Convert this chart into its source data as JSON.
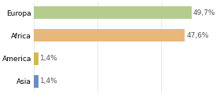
{
  "categories": [
    "Europa",
    "Africa",
    "America",
    "Asia"
  ],
  "values": [
    49.7,
    47.6,
    1.4,
    1.4
  ],
  "labels": [
    "49,7%",
    "47,6%",
    "1,4%",
    "1,4%"
  ],
  "bar_colors": [
    "#b5cc8e",
    "#e8b87a",
    "#d4b84a",
    "#6b8dc4"
  ],
  "background_color": "#ffffff",
  "xlim": [
    0,
    58
  ],
  "label_fontsize": 6.5,
  "tick_fontsize": 6.5,
  "bar_height": 0.55
}
